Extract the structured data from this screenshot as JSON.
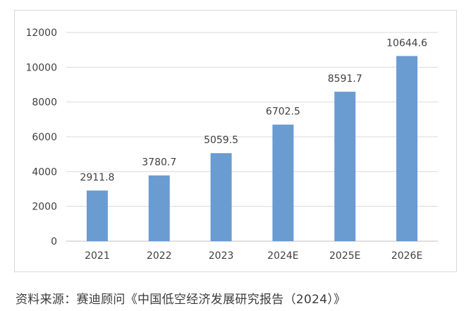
{
  "chart_data": {
    "type": "bar",
    "categories": [
      "2021",
      "2022",
      "2023",
      "2024E",
      "2025E",
      "2026E"
    ],
    "values": [
      2911.8,
      3780.7,
      5059.5,
      6702.5,
      8591.7,
      10644.6
    ],
    "value_labels": [
      "2911.8",
      "3780.7",
      "5059.5",
      "6702.5",
      "8591.7",
      "10644.6"
    ],
    "ylim": [
      0,
      12000
    ],
    "yticks": [
      0,
      2000,
      4000,
      6000,
      8000,
      10000,
      12000
    ],
    "grid": true,
    "bar_color": "#6a9bd1",
    "legend": "none"
  },
  "source": "资料来源：赛迪顾问《中国低空经济发展研究报告（2024）》"
}
